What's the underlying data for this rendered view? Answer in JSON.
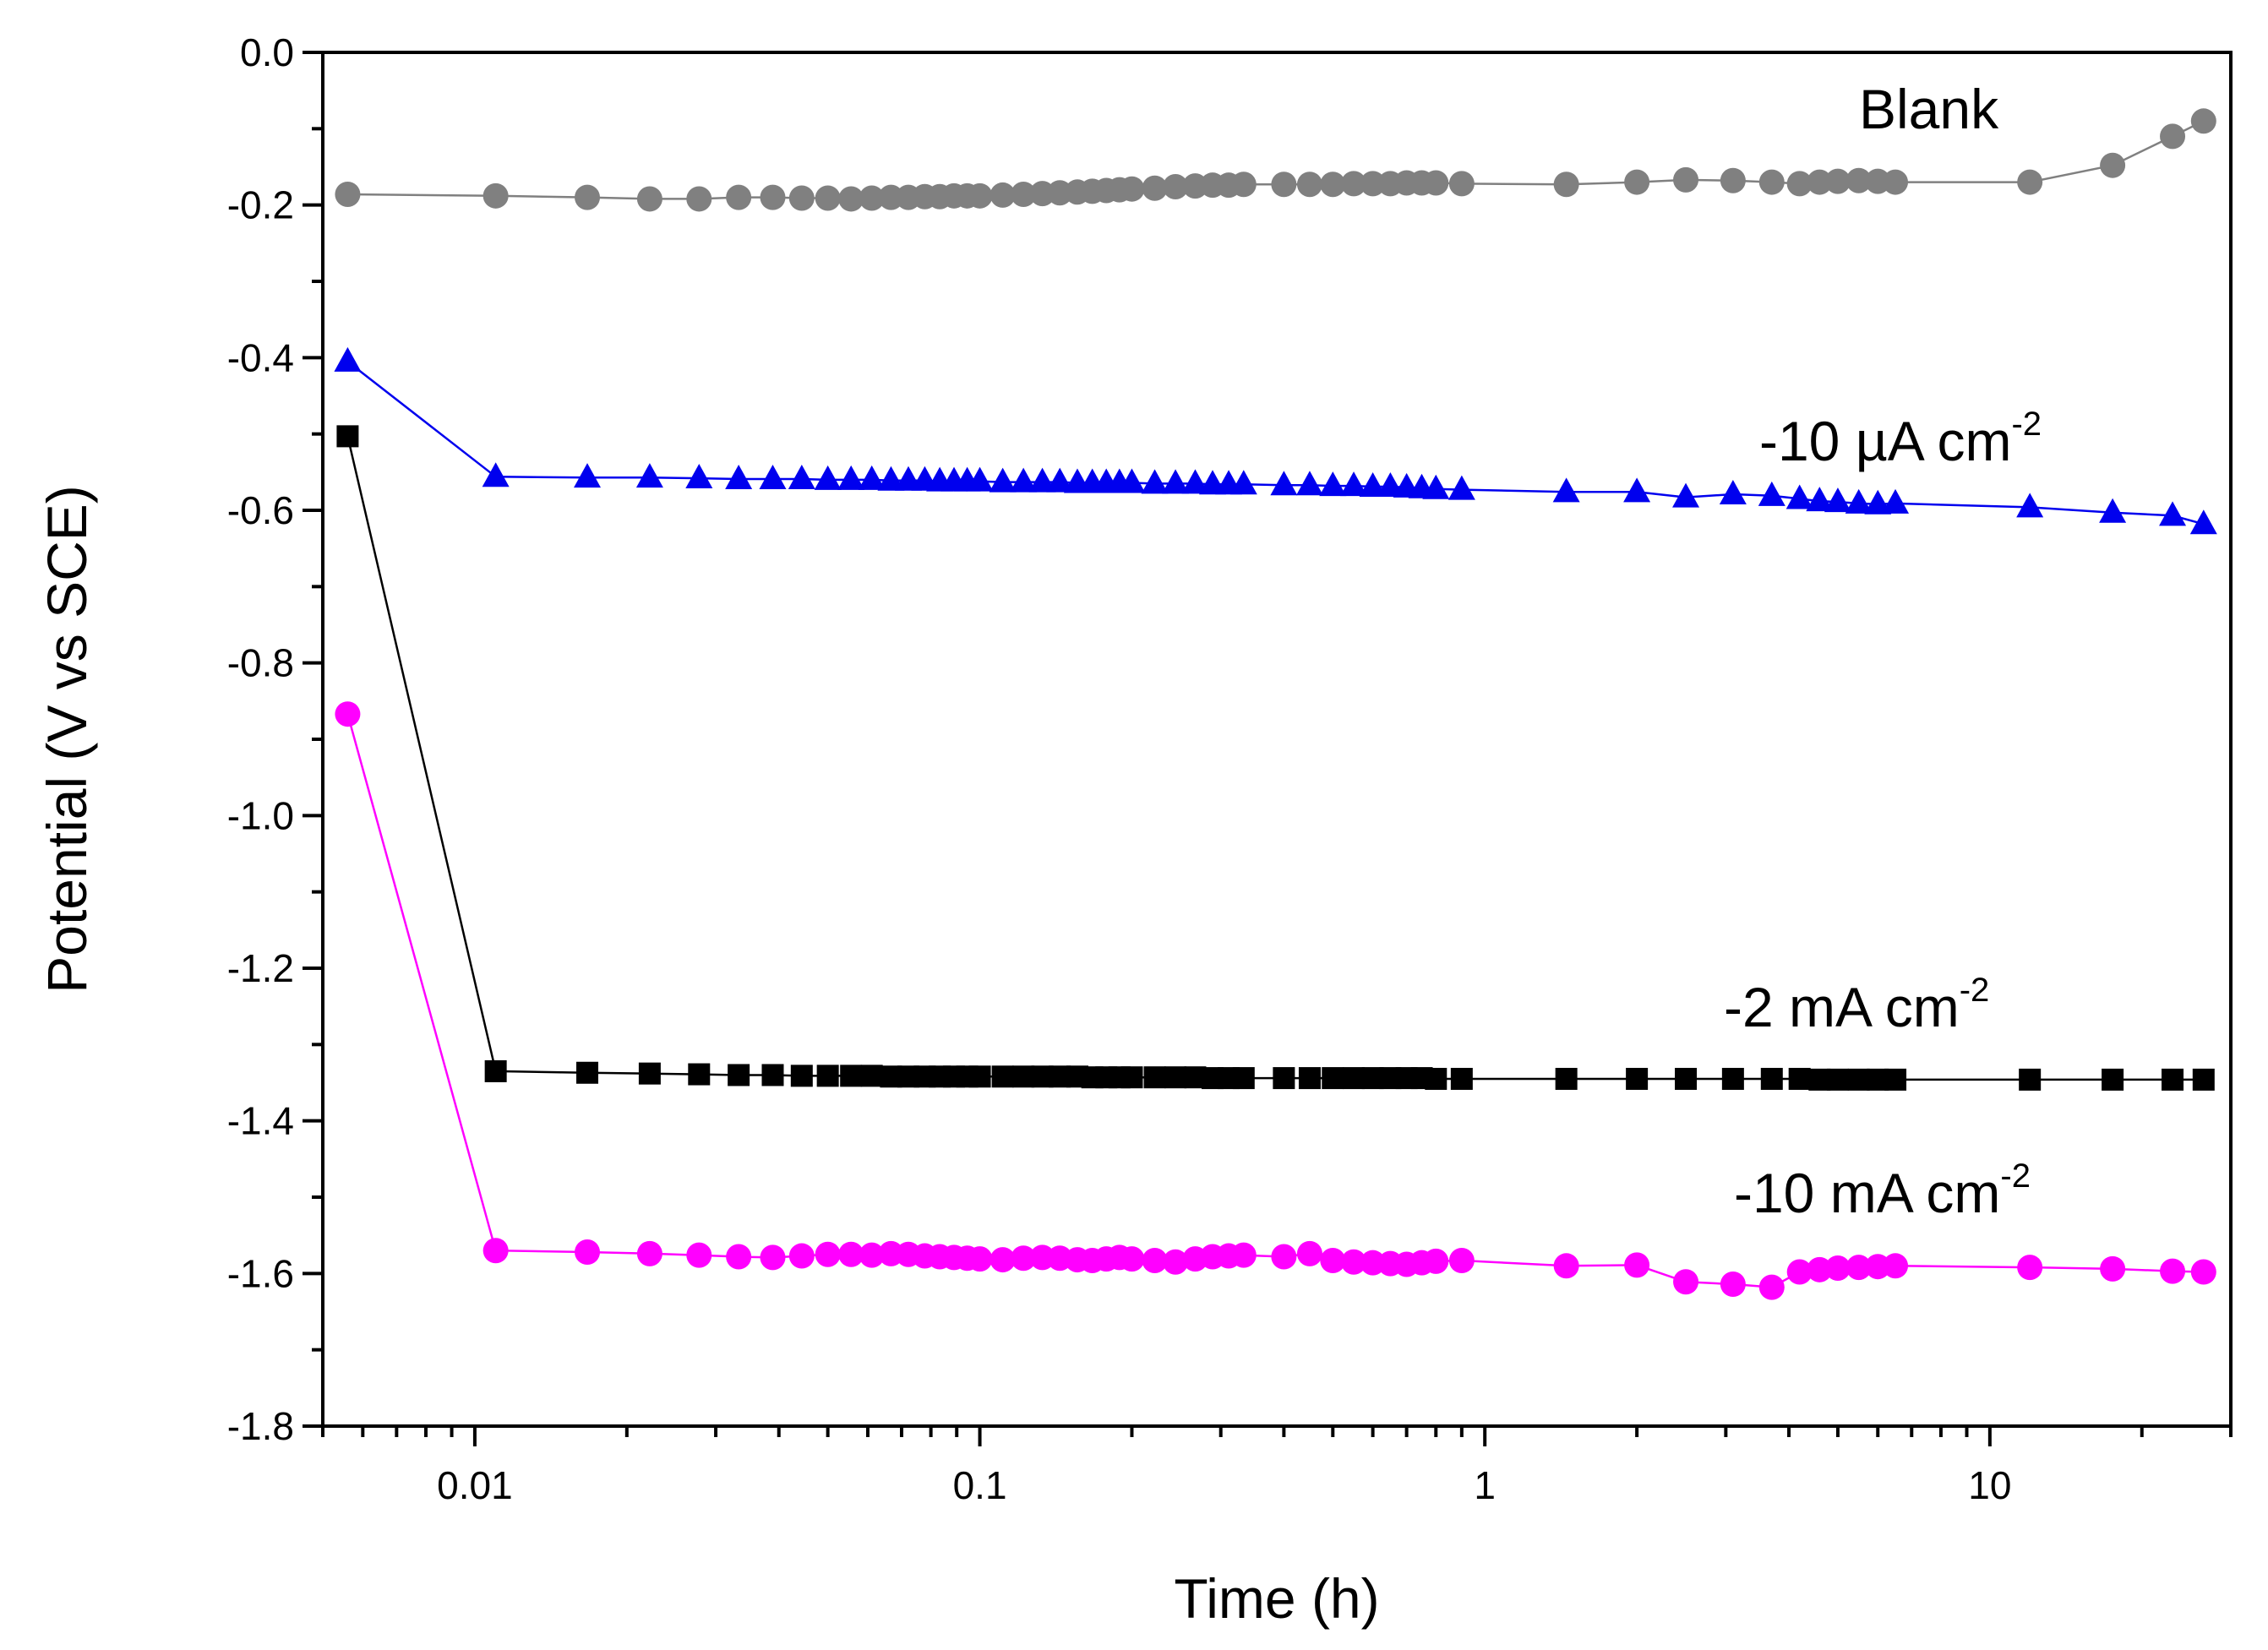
{
  "chart_data": {
    "type": "line",
    "title": "",
    "xlabel": "Time (h)",
    "ylabel": "Potential (V vs SCE)",
    "xscale": "log",
    "xlim": [
      0.005,
      30
    ],
    "ylim": [
      -1.8,
      0.0
    ],
    "xticks": [
      {
        "value": 0.01,
        "label": "0.01"
      },
      {
        "value": 0.1,
        "label": "0.1"
      },
      {
        "value": 1,
        "label": "1"
      },
      {
        "value": 10,
        "label": "10"
      }
    ],
    "yticks": [
      {
        "value": 0.0,
        "label": "0.0"
      },
      {
        "value": -0.2,
        "label": "-0.2"
      },
      {
        "value": -0.4,
        "label": "-0.4"
      },
      {
        "value": -0.6,
        "label": "-0.6"
      },
      {
        "value": -0.8,
        "label": "-0.8"
      },
      {
        "value": -1.0,
        "label": "-1.0"
      },
      {
        "value": -1.2,
        "label": "-1.2"
      },
      {
        "value": -1.4,
        "label": "-1.4"
      },
      {
        "value": -1.6,
        "label": "-1.6"
      },
      {
        "value": -1.8,
        "label": "-1.8"
      }
    ],
    "grid": false,
    "series": [
      {
        "name": "Blank",
        "label_main": "Blank",
        "label_sup": "",
        "color": "#808080",
        "marker": "circle",
        "x": [
          0.0056,
          0.011,
          0.0167,
          0.0222,
          0.0278,
          0.0333,
          0.0389,
          0.0444,
          0.05,
          0.0556,
          0.0611,
          0.0667,
          0.0722,
          0.0778,
          0.0833,
          0.0889,
          0.0944,
          0.1,
          0.111,
          0.122,
          0.133,
          0.144,
          0.156,
          0.167,
          0.178,
          0.189,
          0.2,
          0.222,
          0.244,
          0.267,
          0.289,
          0.311,
          0.333,
          0.4,
          0.45,
          0.5,
          0.55,
          0.6,
          0.65,
          0.7,
          0.75,
          0.8,
          0.9,
          1.45,
          2.0,
          2.5,
          3.1,
          3.7,
          4.2,
          4.6,
          5.0,
          5.5,
          6.0,
          6.5,
          12.0,
          17.5,
          23.0,
          26.5
        ],
        "y": [
          -0.186,
          -0.188,
          -0.19,
          -0.192,
          -0.192,
          -0.19,
          -0.19,
          -0.191,
          -0.191,
          -0.192,
          -0.191,
          -0.19,
          -0.19,
          -0.189,
          -0.189,
          -0.188,
          -0.188,
          -0.188,
          -0.187,
          -0.186,
          -0.185,
          -0.184,
          -0.183,
          -0.182,
          -0.181,
          -0.18,
          -0.179,
          -0.178,
          -0.176,
          -0.175,
          -0.174,
          -0.174,
          -0.173,
          -0.173,
          -0.173,
          -0.173,
          -0.172,
          -0.172,
          -0.172,
          -0.171,
          -0.171,
          -0.171,
          -0.172,
          -0.173,
          -0.17,
          -0.167,
          -0.168,
          -0.17,
          -0.172,
          -0.17,
          -0.169,
          -0.168,
          -0.169,
          -0.17,
          -0.17,
          -0.148,
          -0.11,
          -0.09
        ]
      },
      {
        "name": "-10 µA cm-2",
        "label_main": "-10 µA cm",
        "label_sup": "-2",
        "color": "#0000ee",
        "marker": "triangle",
        "x": [
          0.0056,
          0.011,
          0.0167,
          0.0222,
          0.0278,
          0.0333,
          0.0389,
          0.0444,
          0.05,
          0.0556,
          0.0611,
          0.0667,
          0.0722,
          0.0778,
          0.0833,
          0.0889,
          0.0944,
          0.1,
          0.111,
          0.122,
          0.133,
          0.144,
          0.156,
          0.167,
          0.178,
          0.189,
          0.2,
          0.222,
          0.244,
          0.267,
          0.289,
          0.311,
          0.333,
          0.4,
          0.45,
          0.5,
          0.55,
          0.6,
          0.65,
          0.7,
          0.75,
          0.8,
          0.9,
          1.45,
          2.0,
          2.5,
          3.1,
          3.7,
          4.2,
          4.6,
          5.0,
          5.5,
          6.0,
          6.5,
          12.0,
          17.5,
          23.0,
          26.5
        ],
        "y": [
          -0.405,
          -0.556,
          -0.557,
          -0.557,
          -0.558,
          -0.559,
          -0.559,
          -0.559,
          -0.56,
          -0.56,
          -0.56,
          -0.561,
          -0.561,
          -0.561,
          -0.562,
          -0.562,
          -0.562,
          -0.562,
          -0.563,
          -0.563,
          -0.563,
          -0.563,
          -0.564,
          -0.564,
          -0.564,
          -0.564,
          -0.564,
          -0.565,
          -0.565,
          -0.565,
          -0.566,
          -0.566,
          -0.566,
          -0.567,
          -0.567,
          -0.568,
          -0.568,
          -0.569,
          -0.569,
          -0.57,
          -0.571,
          -0.572,
          -0.573,
          -0.576,
          -0.576,
          -0.583,
          -0.579,
          -0.581,
          -0.585,
          -0.588,
          -0.589,
          -0.591,
          -0.592,
          -0.591,
          -0.596,
          -0.603,
          -0.607,
          -0.618
        ]
      },
      {
        "name": "-2 mA cm-2",
        "label_main": "-2 mA cm",
        "label_sup": "-2",
        "color": "#000000",
        "marker": "square",
        "x": [
          0.0056,
          0.011,
          0.0167,
          0.0222,
          0.0278,
          0.0333,
          0.0389,
          0.0444,
          0.05,
          0.0556,
          0.0611,
          0.0667,
          0.0722,
          0.0778,
          0.0833,
          0.0889,
          0.0944,
          0.1,
          0.111,
          0.122,
          0.133,
          0.144,
          0.156,
          0.167,
          0.178,
          0.189,
          0.2,
          0.222,
          0.244,
          0.267,
          0.289,
          0.311,
          0.333,
          0.4,
          0.45,
          0.5,
          0.55,
          0.6,
          0.65,
          0.7,
          0.75,
          0.8,
          0.9,
          1.45,
          2.0,
          2.5,
          3.1,
          3.7,
          4.2,
          4.6,
          5.0,
          5.5,
          6.0,
          6.5,
          12.0,
          17.5,
          23.0,
          26.5
        ],
        "y": [
          -0.503,
          -1.335,
          -1.337,
          -1.338,
          -1.339,
          -1.34,
          -1.34,
          -1.341,
          -1.341,
          -1.341,
          -1.341,
          -1.342,
          -1.342,
          -1.342,
          -1.342,
          -1.342,
          -1.342,
          -1.342,
          -1.342,
          -1.342,
          -1.342,
          -1.342,
          -1.342,
          -1.343,
          -1.343,
          -1.343,
          -1.343,
          -1.343,
          -1.343,
          -1.343,
          -1.344,
          -1.344,
          -1.344,
          -1.344,
          -1.344,
          -1.344,
          -1.344,
          -1.344,
          -1.344,
          -1.344,
          -1.344,
          -1.345,
          -1.345,
          -1.345,
          -1.345,
          -1.345,
          -1.345,
          -1.345,
          -1.345,
          -1.346,
          -1.346,
          -1.346,
          -1.346,
          -1.346,
          -1.346,
          -1.346,
          -1.346,
          -1.346
        ]
      },
      {
        "name": "-10 mA cm-2",
        "label_main": "-10 mA cm",
        "label_sup": "-2",
        "color": "#ff00ff",
        "marker": "circle",
        "x": [
          0.0056,
          0.011,
          0.0167,
          0.0222,
          0.0278,
          0.0333,
          0.0389,
          0.0444,
          0.05,
          0.0556,
          0.0611,
          0.0667,
          0.0722,
          0.0778,
          0.0833,
          0.0889,
          0.0944,
          0.1,
          0.111,
          0.122,
          0.133,
          0.144,
          0.156,
          0.167,
          0.178,
          0.189,
          0.2,
          0.222,
          0.244,
          0.267,
          0.289,
          0.311,
          0.333,
          0.4,
          0.45,
          0.5,
          0.55,
          0.6,
          0.65,
          0.7,
          0.75,
          0.8,
          0.9,
          1.45,
          2.0,
          2.5,
          3.1,
          3.7,
          4.2,
          4.6,
          5.0,
          5.5,
          6.0,
          6.5,
          12.0,
          17.5,
          23.0,
          26.5
        ],
        "y": [
          -0.867,
          -1.57,
          -1.572,
          -1.574,
          -1.576,
          -1.578,
          -1.579,
          -1.577,
          -1.575,
          -1.575,
          -1.576,
          -1.574,
          -1.575,
          -1.577,
          -1.578,
          -1.579,
          -1.58,
          -1.581,
          -1.582,
          -1.58,
          -1.579,
          -1.58,
          -1.582,
          -1.583,
          -1.581,
          -1.579,
          -1.581,
          -1.583,
          -1.585,
          -1.581,
          -1.578,
          -1.577,
          -1.576,
          -1.578,
          -1.574,
          -1.583,
          -1.585,
          -1.586,
          -1.587,
          -1.588,
          -1.586,
          -1.584,
          -1.583,
          -1.59,
          -1.589,
          -1.611,
          -1.614,
          -1.618,
          -1.598,
          -1.595,
          -1.593,
          -1.592,
          -1.591,
          -1.59,
          -1.592,
          -1.594,
          -1.597,
          -1.598
        ]
      }
    ],
    "annotations": [
      "Blank",
      "-10 µA cm-2",
      "-2 mA cm-2",
      "-10 mA cm-2"
    ]
  }
}
